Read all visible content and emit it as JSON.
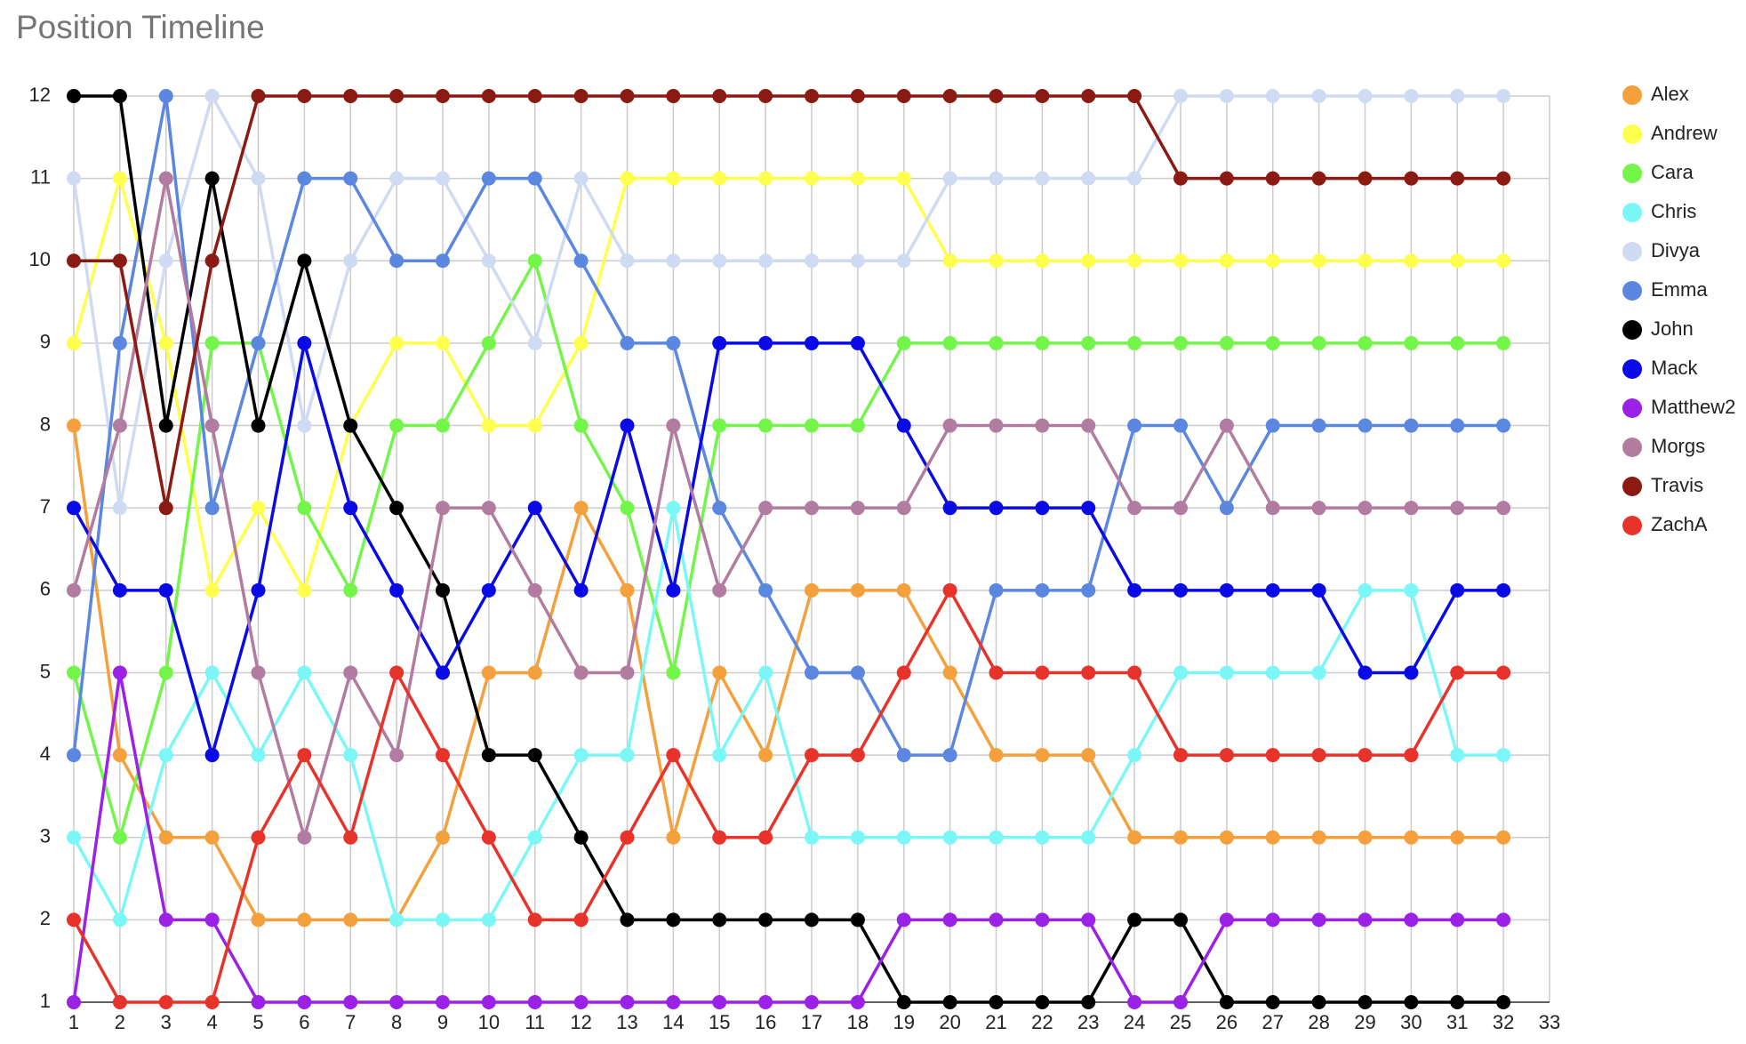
{
  "chart_data": {
    "type": "line",
    "title": "Position Timeline",
    "x": [
      1,
      2,
      3,
      4,
      5,
      6,
      7,
      8,
      9,
      10,
      11,
      12,
      13,
      14,
      15,
      16,
      17,
      18,
      19,
      20,
      21,
      22,
      23,
      24,
      25,
      26,
      27,
      28,
      29,
      30,
      31,
      32
    ],
    "xlim": [
      1,
      33
    ],
    "xticks": [
      1,
      2,
      3,
      4,
      5,
      6,
      7,
      8,
      9,
      10,
      11,
      12,
      13,
      14,
      15,
      16,
      17,
      18,
      19,
      20,
      21,
      22,
      23,
      24,
      25,
      26,
      27,
      28,
      29,
      30,
      31,
      32,
      33
    ],
    "ylim": [
      1,
      12
    ],
    "yticks": [
      1,
      2,
      3,
      4,
      5,
      6,
      7,
      8,
      9,
      10,
      11,
      12
    ],
    "grid": true,
    "legend": "right",
    "series": [
      {
        "name": "Alex",
        "color": "#f4a03c",
        "values": [
          8,
          4,
          3,
          3,
          2,
          2,
          2,
          2,
          3,
          5,
          5,
          7,
          6,
          3,
          5,
          4,
          6,
          6,
          6,
          5,
          4,
          4,
          4,
          3,
          3,
          3,
          3,
          3,
          3,
          3,
          3,
          3
        ]
      },
      {
        "name": "Andrew",
        "color": "#ffff4d",
        "values": [
          9,
          11,
          9,
          6,
          7,
          6,
          8,
          9,
          9,
          8,
          8,
          9,
          11,
          11,
          11,
          11,
          11,
          11,
          11,
          10,
          10,
          10,
          10,
          10,
          10,
          10,
          10,
          10,
          10,
          10,
          10,
          10
        ]
      },
      {
        "name": "Cara",
        "color": "#73f54a",
        "values": [
          5,
          3,
          5,
          9,
          9,
          7,
          6,
          8,
          8,
          9,
          10,
          8,
          7,
          5,
          8,
          8,
          8,
          8,
          9,
          9,
          9,
          9,
          9,
          9,
          9,
          9,
          9,
          9,
          9,
          9,
          9,
          9
        ]
      },
      {
        "name": "Chris",
        "color": "#7cf7f7",
        "values": [
          3,
          2,
          4,
          5,
          4,
          5,
          4,
          2,
          2,
          2,
          3,
          4,
          4,
          7,
          4,
          5,
          3,
          3,
          3,
          3,
          3,
          3,
          3,
          4,
          5,
          5,
          5,
          5,
          6,
          6,
          4,
          4
        ]
      },
      {
        "name": "Divya",
        "color": "#cfdbf2",
        "values": [
          11,
          7,
          10,
          12,
          11,
          8,
          10,
          11,
          11,
          10,
          9,
          11,
          10,
          10,
          10,
          10,
          10,
          10,
          10,
          11,
          11,
          11,
          11,
          11,
          12,
          12,
          12,
          12,
          12,
          12,
          12,
          12
        ]
      },
      {
        "name": "Emma",
        "color": "#5b87e0",
        "values": [
          4,
          9,
          12,
          7,
          9,
          11,
          11,
          10,
          10,
          11,
          11,
          10,
          9,
          9,
          7,
          6,
          5,
          5,
          4,
          4,
          6,
          6,
          6,
          8,
          8,
          7,
          8,
          8,
          8,
          8,
          8,
          8
        ]
      },
      {
        "name": "John",
        "color": "#000000",
        "values": [
          12,
          12,
          8,
          11,
          8,
          10,
          8,
          7,
          6,
          4,
          4,
          3,
          2,
          2,
          2,
          2,
          2,
          2,
          1,
          1,
          1,
          1,
          1,
          2,
          2,
          1,
          1,
          1,
          1,
          1,
          1,
          1
        ]
      },
      {
        "name": "Mack",
        "color": "#0a0ae6",
        "values": [
          7,
          6,
          6,
          4,
          6,
          9,
          7,
          6,
          5,
          6,
          7,
          6,
          8,
          6,
          9,
          9,
          9,
          9,
          8,
          7,
          7,
          7,
          7,
          6,
          6,
          6,
          6,
          6,
          5,
          5,
          6,
          6
        ]
      },
      {
        "name": "Matthew2",
        "color": "#9b21e6",
        "values": [
          1,
          5,
          2,
          2,
          1,
          1,
          1,
          1,
          1,
          1,
          1,
          1,
          1,
          1,
          1,
          1,
          1,
          1,
          2,
          2,
          2,
          2,
          2,
          1,
          1,
          2,
          2,
          2,
          2,
          2,
          2,
          2
        ]
      },
      {
        "name": "Morgs",
        "color": "#b27ba0",
        "values": [
          6,
          8,
          11,
          8,
          5,
          3,
          5,
          4,
          7,
          7,
          6,
          5,
          5,
          8,
          6,
          7,
          7,
          7,
          7,
          8,
          8,
          8,
          8,
          7,
          7,
          8,
          7,
          7,
          7,
          7,
          7,
          7
        ]
      },
      {
        "name": "Travis",
        "color": "#8b1a12",
        "values": [
          10,
          10,
          7,
          10,
          12,
          12,
          12,
          12,
          12,
          12,
          12,
          12,
          12,
          12,
          12,
          12,
          12,
          12,
          12,
          12,
          12,
          12,
          12,
          12,
          11,
          11,
          11,
          11,
          11,
          11,
          11,
          11
        ]
      },
      {
        "name": "ZachA",
        "color": "#e8332a",
        "values": [
          2,
          1,
          1,
          1,
          3,
          4,
          3,
          5,
          4,
          3,
          2,
          2,
          3,
          4,
          3,
          3,
          4,
          4,
          5,
          6,
          5,
          5,
          5,
          5,
          4,
          4,
          4,
          4,
          4,
          4,
          5,
          5
        ]
      }
    ]
  }
}
